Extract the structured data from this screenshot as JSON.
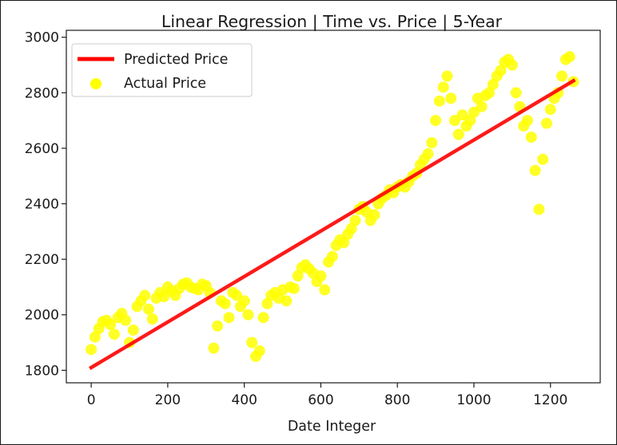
{
  "chart_data": {
    "type": "scatter",
    "title": "Linear Regression | Time vs. Price | 5-Year",
    "xlabel": "Date Integer",
    "ylabel": "",
    "xlim": [
      -65,
      1330
    ],
    "ylim": [
      1755,
      3025
    ],
    "xticks": [
      0,
      200,
      400,
      600,
      800,
      1000,
      1200
    ],
    "yticks": [
      1800,
      2000,
      2200,
      2400,
      2600,
      2800,
      3000
    ],
    "legend_position": "top-left",
    "grid": false,
    "series": [
      {
        "name": "Predicted Price",
        "kind": "line",
        "color": "#ff0000",
        "x": [
          0,
          1260
        ],
        "y": [
          1810,
          2843
        ]
      },
      {
        "name": "Actual Price",
        "kind": "scatter",
        "color": "#ffff00",
        "x": [
          0,
          10,
          20,
          30,
          40,
          50,
          60,
          70,
          80,
          90,
          100,
          110,
          120,
          130,
          140,
          150,
          160,
          170,
          180,
          190,
          200,
          210,
          220,
          230,
          240,
          250,
          260,
          270,
          280,
          290,
          300,
          310,
          320,
          330,
          340,
          350,
          360,
          370,
          380,
          390,
          400,
          410,
          420,
          430,
          440,
          450,
          460,
          470,
          480,
          490,
          500,
          510,
          520,
          530,
          540,
          550,
          560,
          570,
          580,
          590,
          600,
          610,
          620,
          630,
          640,
          650,
          660,
          670,
          680,
          690,
          700,
          710,
          720,
          730,
          740,
          750,
          760,
          770,
          780,
          790,
          800,
          810,
          820,
          830,
          840,
          850,
          860,
          870,
          880,
          890,
          900,
          910,
          920,
          930,
          940,
          950,
          960,
          970,
          980,
          990,
          1000,
          1010,
          1020,
          1030,
          1040,
          1050,
          1060,
          1070,
          1080,
          1090,
          1100,
          1110,
          1120,
          1130,
          1140,
          1150,
          1160,
          1170,
          1180,
          1190,
          1200,
          1210,
          1220,
          1230,
          1240,
          1250,
          1260
        ],
        "y": [
          1875,
          1920,
          1950,
          1975,
          1980,
          1965,
          1930,
          1990,
          2005,
          1980,
          1900,
          1945,
          2030,
          2050,
          2070,
          2020,
          1985,
          2060,
          2080,
          2065,
          2100,
          2085,
          2070,
          2095,
          2110,
          2115,
          2100,
          2095,
          2090,
          2110,
          2105,
          2080,
          1880,
          1960,
          2050,
          2040,
          1990,
          2080,
          2070,
          2030,
          2050,
          2000,
          1900,
          1850,
          1870,
          1990,
          2040,
          2070,
          2080,
          2060,
          2090,
          2050,
          2100,
          2095,
          2140,
          2170,
          2180,
          2165,
          2150,
          2120,
          2140,
          2090,
          2190,
          2210,
          2250,
          2270,
          2260,
          2290,
          2310,
          2340,
          2380,
          2390,
          2370,
          2340,
          2360,
          2400,
          2420,
          2430,
          2450,
          2440,
          2460,
          2470,
          2460,
          2480,
          2500,
          2510,
          2540,
          2560,
          2580,
          2620,
          2700,
          2770,
          2820,
          2860,
          2780,
          2700,
          2650,
          2720,
          2680,
          2700,
          2730,
          2780,
          2750,
          2790,
          2800,
          2830,
          2860,
          2880,
          2910,
          2920,
          2900,
          2800,
          2750,
          2680,
          2700,
          2640,
          2520,
          2380,
          2560,
          2690,
          2740,
          2780,
          2800,
          2860,
          2920,
          2930,
          2840
        ]
      }
    ]
  }
}
